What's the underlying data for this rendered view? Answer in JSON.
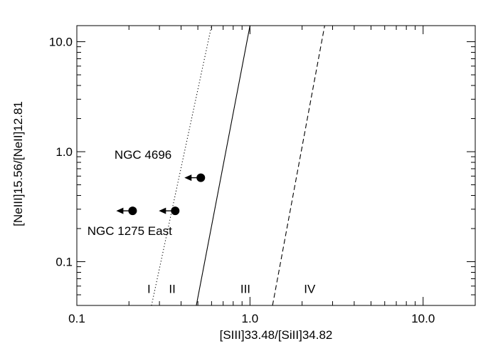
{
  "chart_data": {
    "type": "scatter",
    "xlabel": "[SIII]33.48/[SiII]34.82",
    "ylabel": "[NeIII]15.56/[NeII]12.81",
    "xscale": "log",
    "yscale": "log",
    "xlim": [
      0.1,
      20
    ],
    "ylim": [
      0.04,
      14
    ],
    "grid": false,
    "x_ticks": [
      {
        "value": 0.1,
        "label": "0.1"
      },
      {
        "value": 1,
        "label": "1.0"
      },
      {
        "value": 10,
        "label": "10.0"
      }
    ],
    "y_ticks": [
      {
        "value": 0.1,
        "label": "0.1"
      },
      {
        "value": 1,
        "label": "1.0"
      },
      {
        "value": 10,
        "label": "10.0"
      }
    ],
    "points": [
      {
        "x": 0.52,
        "y": 0.58,
        "upper_limit_x": true
      },
      {
        "x": 0.21,
        "y": 0.29,
        "upper_limit_x": true
      },
      {
        "x": 0.37,
        "y": 0.29,
        "upper_limit_x": true
      }
    ],
    "lines": [
      {
        "style": "dotted",
        "x": [
          0.27,
          0.6
        ],
        "y": [
          0.04,
          14
        ]
      },
      {
        "style": "solid",
        "x": [
          0.49,
          1.0
        ],
        "y": [
          0.04,
          14
        ]
      },
      {
        "style": "dashed",
        "x": [
          1.35,
          2.7
        ],
        "y": [
          0.04,
          14
        ]
      }
    ],
    "annotations": [
      {
        "text": "NGC 4696",
        "x": 0.165,
        "y": 0.86
      },
      {
        "text": "NGC 1275 East",
        "x": 0.115,
        "y": 0.175
      },
      {
        "text": "I",
        "x": 0.255,
        "y": 0.052
      },
      {
        "text": "II",
        "x": 0.34,
        "y": 0.052
      },
      {
        "text": "III",
        "x": 0.88,
        "y": 0.052
      },
      {
        "text": "IV",
        "x": 2.05,
        "y": 0.052
      }
    ]
  }
}
